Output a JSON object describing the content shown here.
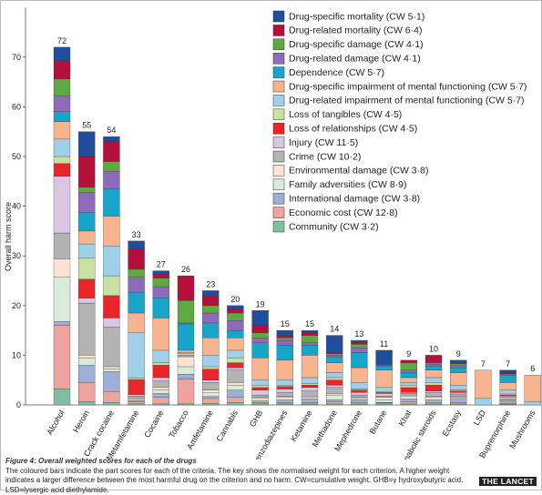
{
  "chart_data": {
    "type": "stacked_bar",
    "title": "Figure 4: Overall weighted scores for each of the drugs",
    "caption": "The coloured bars indicate the part scores for each of the criteria. The key shows the normalised weight for each criterion. A higher weight indicates a larger difference between the most harmful drug on the criterion and no harm. CW=cumulative weight. GHB=γ hydroxybutyric acid. LSD=lysergic acid diethylamide.",
    "source": "THE LANCET",
    "y_label": "Overall harm score",
    "categories": [
      "Alcohol",
      "Heroin",
      "Crack cocaine",
      "Metamfetamine",
      "Cocaine",
      "Tobacco",
      "Amfetamine",
      "Cannabis",
      "GHB",
      "Benzodiazepines",
      "Ketamine",
      "Methadone",
      "Mephedrone",
      "Butane",
      "Khat",
      "Anabolic steroids",
      "Ecstasy",
      "LSD",
      "Buprenorphine",
      "Mushrooms"
    ],
    "totals": [
      72,
      55,
      54,
      33,
      27,
      26,
      23,
      20,
      19,
      15,
      15,
      14,
      13,
      11,
      9,
      10,
      9,
      7,
      7,
      6
    ],
    "ylim": [
      0,
      80
    ],
    "yticks": [
      0,
      10,
      20,
      30,
      40,
      50,
      60,
      70
    ],
    "series": [
      {
        "name": "Drug-specific mortality (CW 5·1)",
        "color": "#1f4e9c",
        "values": [
          2.7,
          5,
          1,
          1.6,
          0.7,
          0,
          1,
          0.7,
          3,
          1,
          0.5,
          3.5,
          0.4,
          3,
          0,
          0,
          0.5,
          0,
          0.5,
          0
        ]
      },
      {
        "name": "Drug-related mortality (CW 6·4)",
        "color": "#b5103c",
        "values": [
          3.7,
          6.2,
          4,
          4.1,
          0.8,
          5,
          2,
          0.8,
          1.5,
          0.5,
          0.5,
          0.2,
          0.4,
          0,
          0.5,
          1.5,
          0.2,
          0,
          0.2,
          0
        ]
      },
      {
        "name": "Drug-specific damage (CW 4·1)",
        "color": "#5fa843",
        "values": [
          3.4,
          1.1,
          2,
          1.6,
          1.7,
          4.5,
          1.5,
          1.5,
          1,
          0.5,
          1.5,
          0.3,
          0.7,
          0,
          1.5,
          0.3,
          0.3,
          0,
          0.1,
          0
        ]
      },
      {
        "name": "Drug-related damage (CW 4·1)",
        "color": "#8e6bb8",
        "values": [
          3.2,
          3.9,
          3.5,
          3,
          2.3,
          0.2,
          2,
          2,
          1,
          1,
          0.5,
          0.3,
          1,
          0.2,
          0.5,
          0.4,
          0.5,
          0,
          0.2,
          0
        ]
      },
      {
        "name": "Dependence (CW 5·7)",
        "color": "#17a6c9",
        "values": [
          2,
          3.8,
          5.5,
          4.2,
          4,
          5.3,
          3,
          1.5,
          3,
          3,
          2,
          1.2,
          3,
          0.8,
          1,
          0.8,
          1,
          0,
          1.5,
          0
        ]
      },
      {
        "name": "Drug-specific impairment of mental functioning (CW 5·7)",
        "color": "#f7b48f",
        "values": [
          3.5,
          2.6,
          6,
          4,
          6.5,
          0.5,
          3.5,
          2.5,
          4.5,
          4,
          4.5,
          2,
          3,
          3.5,
          1,
          1.5,
          2.5,
          5.7,
          1.5,
          5.4
        ]
      },
      {
        "name": "Drug-related impairment of mental functioning (CW 5·7)",
        "color": "#9fd0ea",
        "values": [
          3.5,
          2.8,
          6,
          9.1,
          2.5,
          0,
          2.3,
          1.5,
          1,
          1,
          1.2,
          1,
          1.3,
          0.8,
          0.5,
          1,
          1,
          1.3,
          0.8,
          0.6
        ]
      },
      {
        "name": "Loss of tangibles (CW 4·5)",
        "color": "#c8e0a4",
        "values": [
          1.4,
          4.3,
          4,
          0.3,
          0.5,
          0.2,
          0.5,
          1,
          0.5,
          0.3,
          0.3,
          0.5,
          0.2,
          0.2,
          0.5,
          0.5,
          0.2,
          0,
          0.2,
          0
        ]
      },
      {
        "name": "Loss of relationships (CW 4·5)",
        "color": "#e8262a",
        "values": [
          2.6,
          3.8,
          4.5,
          3,
          2.5,
          0,
          2.2,
          1,
          0.5,
          0.5,
          0.5,
          1,
          0.5,
          0.2,
          1,
          1.2,
          0.3,
          0,
          0.2,
          0
        ]
      },
      {
        "name": "Injury (CW 11·5)",
        "color": "#d9c6e3",
        "values": [
          11.4,
          1,
          1.8,
          0.3,
          0.7,
          0.3,
          0.5,
          0.5,
          1,
          0.7,
          0.7,
          0.5,
          0.5,
          0.5,
          0.2,
          0.3,
          0.3,
          0,
          0.3,
          0
        ]
      },
      {
        "name": "Crime (CW 10·2)",
        "color": "#b3b3b3",
        "values": [
          5.2,
          10.5,
          8,
          0.5,
          1.3,
          0.3,
          1.5,
          2.5,
          0.5,
          0.8,
          1,
          1.2,
          0.5,
          0.3,
          0.3,
          0.8,
          0.5,
          0,
          0.5,
          0
        ]
      },
      {
        "name": "Environmental damage (CW 3·8)",
        "color": "#fde3d3",
        "values": [
          3.7,
          0.5,
          0.5,
          0.2,
          0.5,
          2,
          0.5,
          0.5,
          0.2,
          0.2,
          0.3,
          0.3,
          0.2,
          0.5,
          0.3,
          0.2,
          0.2,
          0,
          0.1,
          0
        ]
      },
      {
        "name": "Family adversities (CW 8·9)",
        "color": "#d9ebd9",
        "values": [
          8.9,
          1.5,
          0.5,
          0.3,
          0.7,
          1.5,
          0.8,
          1,
          0.5,
          0.5,
          0.3,
          1,
          0.3,
          0.5,
          0.5,
          0.5,
          0.2,
          0,
          0.3,
          0
        ]
      },
      {
        "name": "International damage (CW 3·8)",
        "color": "#9eaed6",
        "values": [
          0.8,
          3.5,
          4,
          0.2,
          0.8,
          1,
          0.4,
          1.5,
          0.3,
          0.5,
          0.7,
          0.3,
          0.5,
          0.1,
          0.5,
          0.5,
          0.8,
          0,
          0.3,
          0
        ]
      },
      {
        "name": "Economic cost (CW 12·8)",
        "color": "#efa3a1",
        "values": [
          12.8,
          3.8,
          2.2,
          0.4,
          1.3,
          5,
          1,
          1,
          0.3,
          0.3,
          0.3,
          0.5,
          0.3,
          0.2,
          0.5,
          0.3,
          0.3,
          0,
          0.2,
          0
        ]
      },
      {
        "name": "Community (CW 3·2)",
        "color": "#7fbf9f",
        "values": [
          3.2,
          0.7,
          0.5,
          0.2,
          0.2,
          0.2,
          0.3,
          0.5,
          0.2,
          0.2,
          0.2,
          0.2,
          0.2,
          0.2,
          0.2,
          0.2,
          0.2,
          0,
          0.1,
          0
        ]
      }
    ]
  }
}
